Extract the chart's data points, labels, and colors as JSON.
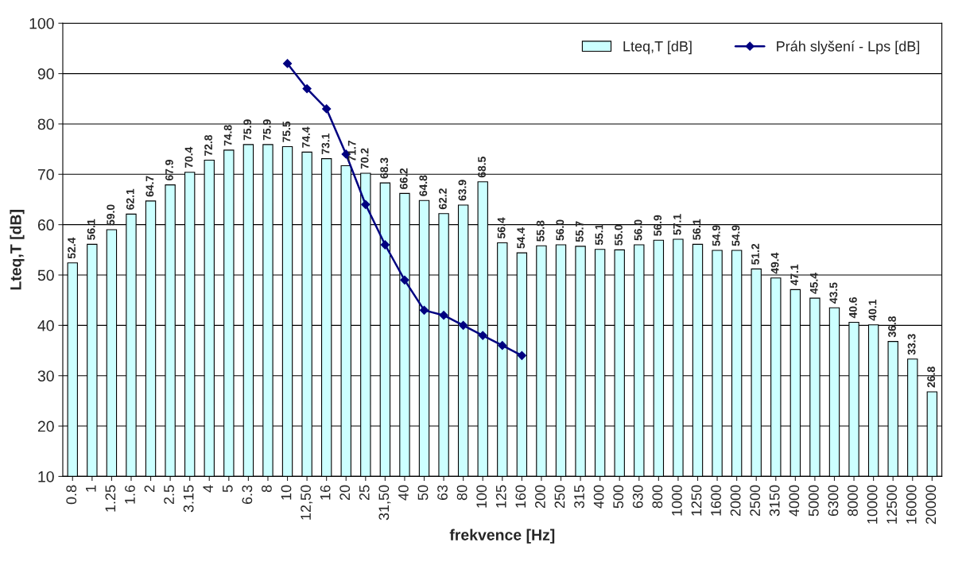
{
  "chart_data": {
    "type": "bar",
    "xlabel": "frekvence [Hz]",
    "ylabel": "Lteq,T [dB]",
    "categories": [
      "0.8",
      "1",
      "1.25",
      "1.6",
      "2",
      "2.5",
      "3.15",
      "4",
      "5",
      "6.3",
      "8",
      "10",
      "12,50",
      "16",
      "20",
      "25",
      "31,50",
      "40",
      "50",
      "63",
      "80",
      "100",
      "125",
      "160",
      "200",
      "250",
      "315",
      "400",
      "500",
      "630",
      "800",
      "1000",
      "1250",
      "1600",
      "2000",
      "2500",
      "3150",
      "4000",
      "5000",
      "6300",
      "8000",
      "10000",
      "12500",
      "16000",
      "20000"
    ],
    "series": [
      {
        "name": "Lteq,T [dB]",
        "color": "#ccffff",
        "values": [
          52.4,
          56.1,
          59.0,
          62.1,
          64.7,
          67.9,
          70.4,
          72.8,
          74.8,
          75.9,
          75.9,
          75.5,
          74.4,
          73.1,
          71.7,
          70.2,
          68.3,
          66.2,
          64.8,
          62.2,
          63.9,
          68.5,
          56.4,
          54.4,
          55.8,
          56.0,
          55.7,
          55.1,
          55.0,
          56.0,
          56.9,
          57.1,
          56.1,
          54.9,
          54.9,
          51.2,
          49.4,
          47.1,
          45.4,
          43.5,
          40.6,
          40.1,
          36.8,
          33.3,
          26.8
        ],
        "value_labels": [
          "52.4",
          "56.1",
          "59.0",
          "62.1",
          "64.7",
          "67.9",
          "70.4",
          "72.8",
          "74.8",
          "75.9",
          "75.9",
          "75.5",
          "74.4",
          "73.1",
          "71.7",
          "70.2",
          "68.3",
          "66.2",
          "64.8",
          "62.2",
          "63.9",
          "68.5",
          "56.4",
          "54.4",
          "55.8",
          "56.0",
          "55.7",
          "55.1",
          "55.0",
          "56.0",
          "56.9",
          "57.1",
          "56.1",
          "54.9",
          "54.9",
          "51.2",
          "49.4",
          "47.1",
          "45.4",
          "43.5",
          "40.6",
          "40.1",
          "36.8",
          "33.3",
          "26.8"
        ]
      },
      {
        "name": "Práh slyšení - Lps [dB]",
        "type": "line",
        "color": "#000080",
        "marker": "diamond",
        "values": [
          null,
          null,
          null,
          null,
          null,
          null,
          null,
          null,
          null,
          null,
          null,
          92,
          87,
          83,
          74,
          64,
          56,
          49,
          43,
          42,
          40,
          38,
          36,
          34,
          null,
          null,
          null,
          null,
          null,
          null,
          null,
          null,
          null,
          null,
          null,
          null,
          null,
          null,
          null,
          null,
          null,
          null,
          null,
          null,
          null
        ]
      }
    ],
    "ylim": [
      10,
      100
    ],
    "yticks": [
      10,
      20,
      30,
      40,
      50,
      60,
      70,
      80,
      90,
      100
    ],
    "grid": "y",
    "legend": "top right"
  }
}
